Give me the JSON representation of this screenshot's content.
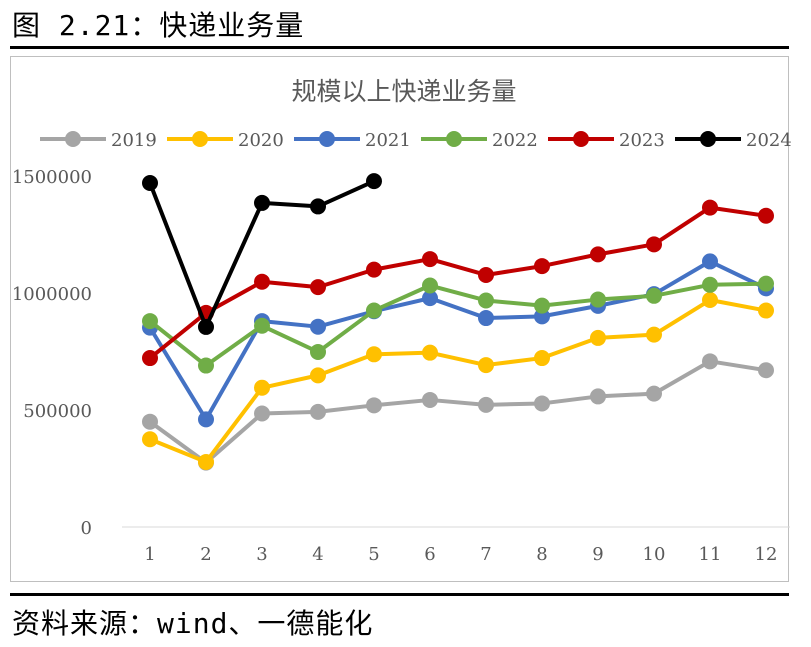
{
  "figure_title": "图 2.21：快递业务量",
  "source_note": "资料来源：wind、一德能化",
  "chart_data": {
    "type": "line",
    "title": "规模以上快递业务量",
    "xlabel": "",
    "ylabel": "",
    "x": [
      "1",
      "2",
      "3",
      "4",
      "5",
      "6",
      "7",
      "8",
      "9",
      "10",
      "11",
      "12"
    ],
    "ylim": [
      0,
      1500000
    ],
    "yticks": [
      "0",
      "500000",
      "1000000",
      "1500000"
    ],
    "grid": false,
    "legend_position": "top",
    "series": [
      {
        "name": "2019",
        "color": "#a5a5a5",
        "values": [
          450000,
          275000,
          485000,
          492000,
          520000,
          543000,
          522000,
          528000,
          558000,
          570000,
          708000,
          670000
        ]
      },
      {
        "name": "2020",
        "color": "#ffc000",
        "values": [
          375000,
          278000,
          595000,
          648000,
          738000,
          745000,
          692000,
          722000,
          808000,
          822000,
          970000,
          925000
        ]
      },
      {
        "name": "2021",
        "color": "#4472c4",
        "values": [
          852000,
          460000,
          880000,
          856000,
          922000,
          978000,
          893000,
          900000,
          945000,
          995000,
          1135000,
          1020000
        ]
      },
      {
        "name": "2022",
        "color": "#70ad47",
        "values": [
          880000,
          690000,
          860000,
          748000,
          925000,
          1032000,
          968000,
          946000,
          972000,
          988000,
          1035000,
          1040000
        ]
      },
      {
        "name": "2023",
        "color": "#c00000",
        "values": [
          722000,
          915000,
          1048000,
          1025000,
          1100000,
          1145000,
          1077000,
          1115000,
          1165000,
          1208000,
          1365000,
          1330000
        ]
      },
      {
        "name": "2024",
        "color": "#000000",
        "values": [
          1470000,
          855000,
          1385000,
          1370000,
          1478000,
          null,
          null,
          null,
          null,
          null,
          null,
          null
        ]
      }
    ]
  }
}
